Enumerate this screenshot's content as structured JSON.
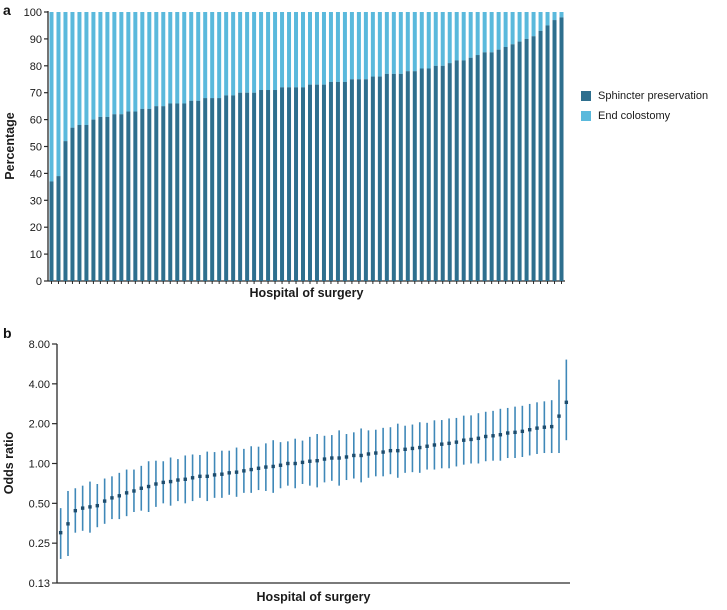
{
  "figure": {
    "panel_a": {
      "label": "a",
      "ylabel": "Percentage",
      "xlabel": "Hospital of surgery"
    },
    "panel_b": {
      "label": "b",
      "ylabel": "Odds ratio",
      "xlabel": "Hospital of surgery"
    },
    "legend": {
      "items": [
        {
          "label": "Sphincter preservation",
          "color": "#2e6f8e"
        },
        {
          "label": "End colostomy",
          "color": "#5ab9dc"
        }
      ]
    },
    "colors": {
      "sphincter_preservation": "#2e6f8e",
      "end_colostomy": "#5ab9dc",
      "ci_line": "#3f88b8",
      "or_marker": "#1e4d6e",
      "axis": "#2a2a2a"
    }
  },
  "chart_data": [
    {
      "type": "bar",
      "stacked": true,
      "title": "",
      "xlabel": "Hospital of surgery",
      "ylabel": "Percentage",
      "ylim": [
        0,
        100
      ],
      "yticks": [
        0,
        10,
        20,
        30,
        40,
        50,
        60,
        70,
        80,
        90,
        100
      ],
      "x_description": "one bar per hospital, sorted ascending by sphincter preservation rate; individual hospital tick per bar, no hospital names shown",
      "legend_position": "right",
      "series": [
        {
          "name": "Sphincter preservation",
          "color": "#2e6f8e",
          "values": [
            37,
            39,
            52,
            57,
            58,
            58,
            60,
            61,
            61,
            62,
            62,
            63,
            63,
            64,
            64,
            65,
            65,
            66,
            66,
            66,
            67,
            67,
            68,
            68,
            68,
            69,
            69,
            70,
            70,
            70,
            71,
            71,
            71,
            72,
            72,
            72,
            72,
            73,
            73,
            73,
            74,
            74,
            74,
            75,
            75,
            75,
            76,
            76,
            77,
            77,
            77,
            78,
            78,
            79,
            79,
            80,
            80,
            81,
            82,
            82,
            83,
            84,
            85,
            85,
            86,
            87,
            88,
            89,
            90,
            91,
            93,
            95,
            97,
            98
          ]
        },
        {
          "name": "End colostomy",
          "color": "#5ab9dc",
          "values": [
            63,
            61,
            48,
            43,
            42,
            42,
            40,
            39,
            39,
            38,
            38,
            37,
            37,
            36,
            36,
            35,
            35,
            34,
            34,
            34,
            33,
            33,
            32,
            32,
            32,
            31,
            31,
            30,
            30,
            30,
            29,
            29,
            29,
            28,
            28,
            28,
            28,
            27,
            27,
            27,
            26,
            26,
            26,
            25,
            25,
            25,
            24,
            24,
            23,
            23,
            23,
            22,
            22,
            21,
            21,
            20,
            20,
            19,
            18,
            18,
            17,
            16,
            15,
            15,
            14,
            13,
            12,
            11,
            10,
            9,
            7,
            5,
            3,
            2
          ]
        }
      ]
    },
    {
      "type": "scatter",
      "subtype": "forest-plot",
      "title": "",
      "xlabel": "Hospital of surgery",
      "ylabel": "Odds ratio",
      "yscale": "log2",
      "ylim": [
        0.125,
        8
      ],
      "ytick_labels": [
        "8.00",
        "4.00",
        "2.00",
        "1.00",
        "0.50",
        "0.25",
        "0.13"
      ],
      "ytick_values": [
        8,
        4,
        2,
        1,
        0.5,
        0.25,
        0.125
      ],
      "x_description": "one point per hospital, sorted ascending by odds ratio; vertical line = 95% CI, dot = odds ratio",
      "point_format": [
        "odds_ratio",
        "ci_low",
        "ci_high"
      ],
      "points": [
        [
          0.3,
          0.19,
          0.46
        ],
        [
          0.35,
          0.2,
          0.62
        ],
        [
          0.44,
          0.3,
          0.65
        ],
        [
          0.46,
          0.31,
          0.68
        ],
        [
          0.47,
          0.3,
          0.73
        ],
        [
          0.48,
          0.33,
          0.7
        ],
        [
          0.52,
          0.35,
          0.77
        ],
        [
          0.55,
          0.38,
          0.8
        ],
        [
          0.57,
          0.38,
          0.85
        ],
        [
          0.6,
          0.4,
          0.9
        ],
        [
          0.62,
          0.43,
          0.9
        ],
        [
          0.65,
          0.44,
          0.96
        ],
        [
          0.67,
          0.43,
          1.04
        ],
        [
          0.7,
          0.47,
          1.05
        ],
        [
          0.72,
          0.5,
          1.04
        ],
        [
          0.73,
          0.48,
          1.11
        ],
        [
          0.75,
          0.52,
          1.08
        ],
        [
          0.76,
          0.5,
          1.15
        ],
        [
          0.78,
          0.52,
          1.17
        ],
        [
          0.8,
          0.55,
          1.16
        ],
        [
          0.8,
          0.52,
          1.23
        ],
        [
          0.82,
          0.55,
          1.22
        ],
        [
          0.83,
          0.55,
          1.25
        ],
        [
          0.85,
          0.58,
          1.25
        ],
        [
          0.86,
          0.56,
          1.32
        ],
        [
          0.88,
          0.6,
          1.29
        ],
        [
          0.9,
          0.6,
          1.35
        ],
        [
          0.92,
          0.63,
          1.34
        ],
        [
          0.94,
          0.62,
          1.42
        ],
        [
          0.95,
          0.6,
          1.5
        ],
        [
          0.97,
          0.65,
          1.45
        ],
        [
          1.0,
          0.68,
          1.47
        ],
        [
          1.0,
          0.65,
          1.54
        ],
        [
          1.02,
          0.7,
          1.49
        ],
        [
          1.04,
          0.68,
          1.59
        ],
        [
          1.05,
          0.66,
          1.67
        ],
        [
          1.08,
          0.72,
          1.62
        ],
        [
          1.1,
          0.74,
          1.64
        ],
        [
          1.1,
          0.68,
          1.78
        ],
        [
          1.12,
          0.75,
          1.67
        ],
        [
          1.15,
          0.77,
          1.72
        ],
        [
          1.15,
          0.72,
          1.84
        ],
        [
          1.18,
          0.78,
          1.78
        ],
        [
          1.2,
          0.8,
          1.8
        ],
        [
          1.22,
          0.8,
          1.86
        ],
        [
          1.25,
          0.83,
          1.88
        ],
        [
          1.25,
          0.78,
          2.0
        ],
        [
          1.28,
          0.85,
          1.93
        ],
        [
          1.3,
          0.86,
          1.97
        ],
        [
          1.32,
          0.85,
          2.05
        ],
        [
          1.35,
          0.9,
          2.03
        ],
        [
          1.38,
          0.9,
          2.12
        ],
        [
          1.4,
          0.92,
          2.13
        ],
        [
          1.42,
          0.92,
          2.19
        ],
        [
          1.45,
          0.95,
          2.21
        ],
        [
          1.5,
          0.98,
          2.3
        ],
        [
          1.52,
          1.0,
          2.31
        ],
        [
          1.55,
          1.0,
          2.4
        ],
        [
          1.6,
          1.04,
          2.46
        ],
        [
          1.62,
          1.05,
          2.5
        ],
        [
          1.65,
          1.05,
          2.59
        ],
        [
          1.7,
          1.1,
          2.63
        ],
        [
          1.72,
          1.1,
          2.69
        ],
        [
          1.75,
          1.12,
          2.73
        ],
        [
          1.8,
          1.15,
          2.82
        ],
        [
          1.85,
          1.18,
          2.9
        ],
        [
          1.88,
          1.2,
          2.95
        ],
        [
          1.9,
          1.2,
          3.01
        ],
        [
          2.28,
          1.2,
          4.3
        ],
        [
          2.9,
          1.5,
          6.1
        ]
      ]
    }
  ]
}
